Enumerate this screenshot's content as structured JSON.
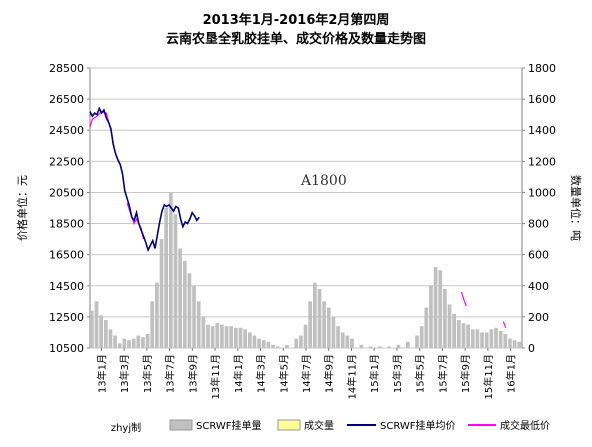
{
  "chart_data": {
    "type": "line",
    "title": "2013年1月-2016年2月第四周",
    "subtitle": "云南农垦全乳胶挂单、成交价格及数量走势图",
    "ylabel": "价格单位：元",
    "y2label": "数量单位：吨",
    "annotation": "A1800",
    "credit": "zhyj制",
    "ylim": [
      10500,
      28500
    ],
    "y2lim": [
      0,
      1800
    ],
    "yticks": [
      "28500",
      "26500",
      "24500",
      "22500",
      "20500",
      "18500",
      "16500",
      "14500",
      "12500",
      "10500"
    ],
    "y2ticks": [
      "1800",
      "1600",
      "1400",
      "1200",
      "1000",
      "800",
      "600",
      "400",
      "200",
      "0"
    ],
    "xticks": [
      "13年1月",
      "13年3月",
      "13年5月",
      "13年7月",
      "13年9月",
      "13年11月",
      "14年1月",
      "14年3月",
      "14年5月",
      "14年7月",
      "14年9月",
      "14年11月",
      "15年1月",
      "15年3月",
      "15年5月",
      "15年7月",
      "15年9月",
      "15年11月",
      "16年1月"
    ],
    "grid": true,
    "legend_position": "bottom",
    "colors": {
      "volume": "#c0c0c0",
      "traded": "#ffff99",
      "avg": "#000080",
      "low": "#ff00ff"
    },
    "series": [
      {
        "name": "SCRWF挂单量",
        "type": "bar",
        "axis": "y2",
        "values": [
          [
            0,
            240
          ],
          [
            2,
            300
          ],
          [
            4,
            210
          ],
          [
            6,
            180
          ],
          [
            8,
            120
          ],
          [
            10,
            80
          ],
          [
            12,
            30
          ],
          [
            14,
            60
          ],
          [
            16,
            50
          ],
          [
            18,
            60
          ],
          [
            20,
            80
          ],
          [
            22,
            70
          ],
          [
            24,
            90
          ],
          [
            26,
            300
          ],
          [
            28,
            420
          ],
          [
            30,
            700
          ],
          [
            32,
            900
          ],
          [
            34,
            1000
          ],
          [
            36,
            860
          ],
          [
            38,
            640
          ],
          [
            40,
            560
          ],
          [
            42,
            480
          ],
          [
            44,
            400
          ],
          [
            46,
            300
          ],
          [
            48,
            200
          ],
          [
            50,
            150
          ],
          [
            52,
            140
          ],
          [
            54,
            160
          ],
          [
            56,
            150
          ],
          [
            58,
            140
          ],
          [
            60,
            140
          ],
          [
            62,
            130
          ],
          [
            64,
            130
          ],
          [
            66,
            120
          ],
          [
            68,
            100
          ],
          [
            70,
            80
          ],
          [
            72,
            60
          ],
          [
            74,
            50
          ],
          [
            76,
            40
          ],
          [
            78,
            20
          ],
          [
            80,
            10
          ],
          [
            84,
            20
          ],
          [
            88,
            60
          ],
          [
            90,
            80
          ],
          [
            92,
            150
          ],
          [
            94,
            300
          ],
          [
            96,
            420
          ],
          [
            98,
            380
          ],
          [
            100,
            300
          ],
          [
            102,
            260
          ],
          [
            104,
            200
          ],
          [
            106,
            140
          ],
          [
            108,
            100
          ],
          [
            110,
            80
          ],
          [
            112,
            60
          ],
          [
            116,
            20
          ],
          [
            120,
            10
          ],
          [
            124,
            10
          ],
          [
            128,
            10
          ],
          [
            132,
            20
          ],
          [
            136,
            40
          ],
          [
            140,
            80
          ],
          [
            142,
            140
          ],
          [
            144,
            260
          ],
          [
            146,
            400
          ],
          [
            148,
            520
          ],
          [
            150,
            500
          ],
          [
            152,
            380
          ],
          [
            154,
            280
          ],
          [
            156,
            220
          ],
          [
            158,
            180
          ],
          [
            160,
            160
          ],
          [
            162,
            150
          ],
          [
            164,
            120
          ],
          [
            166,
            120
          ],
          [
            168,
            100
          ],
          [
            170,
            100
          ],
          [
            172,
            120
          ],
          [
            174,
            130
          ],
          [
            176,
            110
          ],
          [
            178,
            90
          ],
          [
            180,
            60
          ],
          [
            182,
            50
          ],
          [
            184,
            40
          ]
        ]
      },
      {
        "name": "成交量",
        "type": "bar",
        "axis": "y2",
        "values": []
      },
      {
        "name": "SCRWF挂单均价",
        "type": "line",
        "axis": "y",
        "values": [
          [
            0,
            25700
          ],
          [
            1,
            25400
          ],
          [
            2,
            25600
          ],
          [
            3,
            25500
          ],
          [
            4,
            25900
          ],
          [
            5,
            25600
          ],
          [
            6,
            25800
          ],
          [
            7,
            25300
          ],
          [
            8,
            25000
          ],
          [
            9,
            24600
          ],
          [
            10,
            23600
          ],
          [
            11,
            23000
          ],
          [
            12,
            22600
          ],
          [
            13,
            22300
          ],
          [
            14,
            21700
          ],
          [
            15,
            20600
          ],
          [
            16,
            20100
          ],
          [
            17,
            19600
          ],
          [
            18,
            18900
          ],
          [
            19,
            18700
          ],
          [
            20,
            19200
          ],
          [
            21,
            18500
          ],
          [
            22,
            18100
          ],
          [
            23,
            17700
          ],
          [
            24,
            17300
          ],
          [
            25,
            16800
          ],
          [
            26,
            17100
          ],
          [
            27,
            17400
          ],
          [
            28,
            16900
          ],
          [
            30,
            18600
          ],
          [
            31,
            19300
          ],
          [
            32,
            19700
          ],
          [
            33,
            19600
          ],
          [
            34,
            19700
          ],
          [
            35,
            19500
          ],
          [
            36,
            19300
          ],
          [
            37,
            19600
          ],
          [
            38,
            19500
          ],
          [
            39,
            18800
          ],
          [
            40,
            18300
          ],
          [
            41,
            18600
          ],
          [
            42,
            18500
          ],
          [
            43,
            18800
          ],
          [
            44,
            19200
          ],
          [
            45,
            19000
          ],
          [
            46,
            18700
          ],
          [
            47,
            18900
          ]
        ]
      },
      {
        "name": "成交最低价",
        "type": "line",
        "axis": "y",
        "values": [
          [
            0,
            24700
          ],
          [
            1,
            25200
          ],
          [
            3,
            25400
          ],
          [
            5,
            25700
          ],
          [
            7,
            25600
          ],
          [
            9,
            24500
          ],
          [
            16,
            19800
          ],
          [
            19,
            18500
          ],
          [
            20,
            18800
          ],
          [
            22,
            18200
          ],
          [
            23,
            17500
          ],
          [
            160,
            14100
          ],
          [
            161,
            13600
          ],
          [
            162,
            13200
          ],
          [
            178,
            12200
          ],
          [
            179,
            11800
          ]
        ]
      }
    ]
  }
}
